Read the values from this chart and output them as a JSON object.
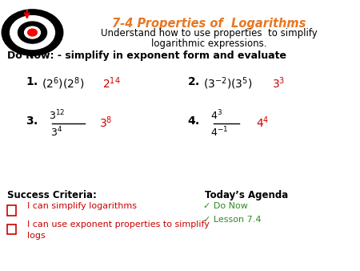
{
  "title": "7-4 Properties of  Logarithms",
  "subtitle_line1": "Understand how to use properties  to simplify",
  "subtitle_line2": "logarithmic expressions.",
  "do_now": "Do Now: - simplify in exponent form and evaluate",
  "title_color": "#E87722",
  "black": "#000000",
  "red": "#CC0000",
  "green": "#2E8B22",
  "bg_color": "#FFFFFF",
  "success_title": "Success Criteria:",
  "success_item1": "I can simplify logarithms",
  "success_item2": "I can use exponent properties to simplify",
  "success_item2b": "logs",
  "agenda_title": "Today’s Agenda",
  "agenda_item1": "Do Now",
  "agenda_item2": "Lesson 7.4"
}
